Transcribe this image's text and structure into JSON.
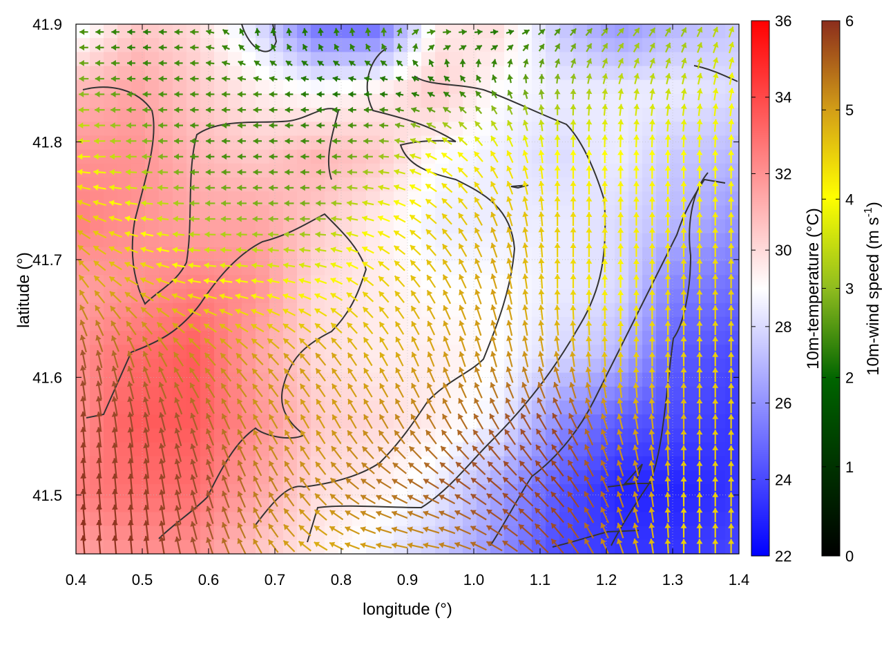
{
  "chart_data": {
    "type": "heatmap",
    "title": "",
    "xlabel": "longitude (°)",
    "ylabel": "latitude (°)",
    "xlim": [
      0.4,
      1.4
    ],
    "ylim": [
      41.45,
      41.9
    ],
    "xticks": [
      "0.4",
      "0.5",
      "0.6",
      "0.7",
      "0.8",
      "0.9",
      "1.0",
      "1.1",
      "1.2",
      "1.3",
      "1.4"
    ],
    "yticks": [
      "41.5",
      "41.6",
      "41.7",
      "41.8",
      "41.9"
    ],
    "grid": true,
    "temperature_colorbar": {
      "label": "10m-temperature (°C)",
      "range": [
        22,
        36
      ],
      "ticks": [
        "22",
        "24",
        "26",
        "28",
        "30",
        "32",
        "34",
        "36"
      ],
      "colors": [
        "#0000ff",
        "#ffffff",
        "#ff0000"
      ]
    },
    "wind_colorbar": {
      "label": "10m-wind speed (m s-1)",
      "label_base": "10m-wind speed (m s",
      "label_exp": "-1",
      "label_close": ")",
      "range": [
        0,
        6
      ],
      "ticks": [
        "0",
        "1",
        "2",
        "3",
        "4",
        "5",
        "6"
      ],
      "colors": [
        "#000000",
        "#006400",
        "#8fbc1f",
        "#ffff00",
        "#d4a017",
        "#a0522d",
        "#8b2d1c"
      ]
    },
    "temperature_field": [
      [
        28.5,
        30.5,
        30.0,
        28.0,
        25.0,
        24.8,
        29.5,
        30.0,
        27.5,
        26.0,
        27.0,
        27.5
      ],
      [
        31.0,
        31.5,
        30.5,
        29.5,
        29.0,
        29.5,
        30.5,
        29.0,
        28.5,
        28.5,
        28.5,
        28.0
      ],
      [
        32.0,
        32.0,
        31.0,
        30.5,
        31.0,
        30.5,
        29.0,
        28.5,
        28.0,
        28.5,
        27.5,
        27.0
      ],
      [
        32.5,
        32.0,
        31.5,
        31.5,
        30.5,
        29.5,
        28.5,
        28.5,
        28.5,
        28.0,
        27.0,
        26.0
      ],
      [
        31.5,
        32.0,
        32.5,
        32.0,
        30.0,
        29.5,
        29.0,
        29.0,
        28.5,
        28.0,
        25.5,
        25.0
      ],
      [
        32.0,
        33.0,
        33.5,
        31.5,
        30.0,
        29.5,
        29.5,
        29.0,
        28.0,
        27.0,
        24.5,
        24.0
      ],
      [
        32.0,
        33.5,
        33.5,
        32.0,
        30.5,
        30.0,
        29.5,
        28.5,
        26.0,
        24.5,
        24.0,
        23.5
      ],
      [
        32.5,
        33.0,
        33.0,
        31.5,
        30.0,
        29.5,
        28.5,
        26.5,
        24.5,
        23.0,
        23.0,
        23.5
      ],
      [
        31.5,
        32.0,
        32.0,
        30.5,
        29.5,
        28.5,
        27.5,
        26.0,
        24.0,
        23.5,
        23.5,
        24.0
      ]
    ],
    "wind_speed_field": [
      [
        1.5,
        1.2,
        1.5,
        1.2,
        1.2,
        1.5,
        1.5,
        1.2,
        1.5,
        2.0,
        2.0,
        2.5
      ],
      [
        2.0,
        1.5,
        1.5,
        1.5,
        1.2,
        1.2,
        1.2,
        1.5,
        2.0,
        2.5,
        2.5,
        3.0
      ],
      [
        3.0,
        2.2,
        1.5,
        1.5,
        1.5,
        2.0,
        3.0,
        3.2,
        3.0,
        3.0,
        3.0,
        3.0
      ],
      [
        3.8,
        3.0,
        2.2,
        2.0,
        2.0,
        3.0,
        3.5,
        3.8,
        3.5,
        3.2,
        3.2,
        3.2
      ],
      [
        4.0,
        3.8,
        3.2,
        3.0,
        3.0,
        3.5,
        3.8,
        4.0,
        3.5,
        3.0,
        3.5,
        3.5
      ],
      [
        5.0,
        4.5,
        4.2,
        4.0,
        4.0,
        3.8,
        4.0,
        4.2,
        4.0,
        3.5,
        3.5,
        3.5
      ],
      [
        5.5,
        5.2,
        4.8,
        4.2,
        4.0,
        4.2,
        4.5,
        4.8,
        5.2,
        4.0,
        3.8,
        3.5
      ],
      [
        5.8,
        5.5,
        5.2,
        4.5,
        4.2,
        4.5,
        4.8,
        5.2,
        5.5,
        4.5,
        3.5,
        3.5
      ],
      [
        6.0,
        5.8,
        5.0,
        4.2,
        3.8,
        4.0,
        4.2,
        4.8,
        5.0,
        4.0,
        3.5,
        3.5
      ]
    ],
    "wind_direction_deg": [
      [
        270,
        270,
        270,
        0,
        0,
        0,
        90,
        90,
        45,
        45,
        30,
        20
      ],
      [
        270,
        270,
        270,
        270,
        270,
        270,
        300,
        330,
        0,
        10,
        10,
        10
      ],
      [
        270,
        270,
        270,
        270,
        270,
        270,
        300,
        330,
        0,
        0,
        0,
        0
      ],
      [
        300,
        280,
        270,
        270,
        270,
        290,
        315,
        340,
        0,
        0,
        0,
        0
      ],
      [
        330,
        300,
        280,
        280,
        290,
        315,
        330,
        345,
        0,
        0,
        0,
        0
      ],
      [
        350,
        340,
        320,
        315,
        320,
        330,
        340,
        345,
        350,
        0,
        0,
        0
      ],
      [
        355,
        350,
        340,
        330,
        330,
        330,
        330,
        330,
        330,
        345,
        0,
        0
      ],
      [
        355,
        355,
        345,
        335,
        320,
        300,
        300,
        310,
        320,
        340,
        0,
        0
      ],
      [
        355,
        355,
        345,
        330,
        300,
        280,
        280,
        300,
        320,
        340,
        0,
        0
      ]
    ]
  }
}
